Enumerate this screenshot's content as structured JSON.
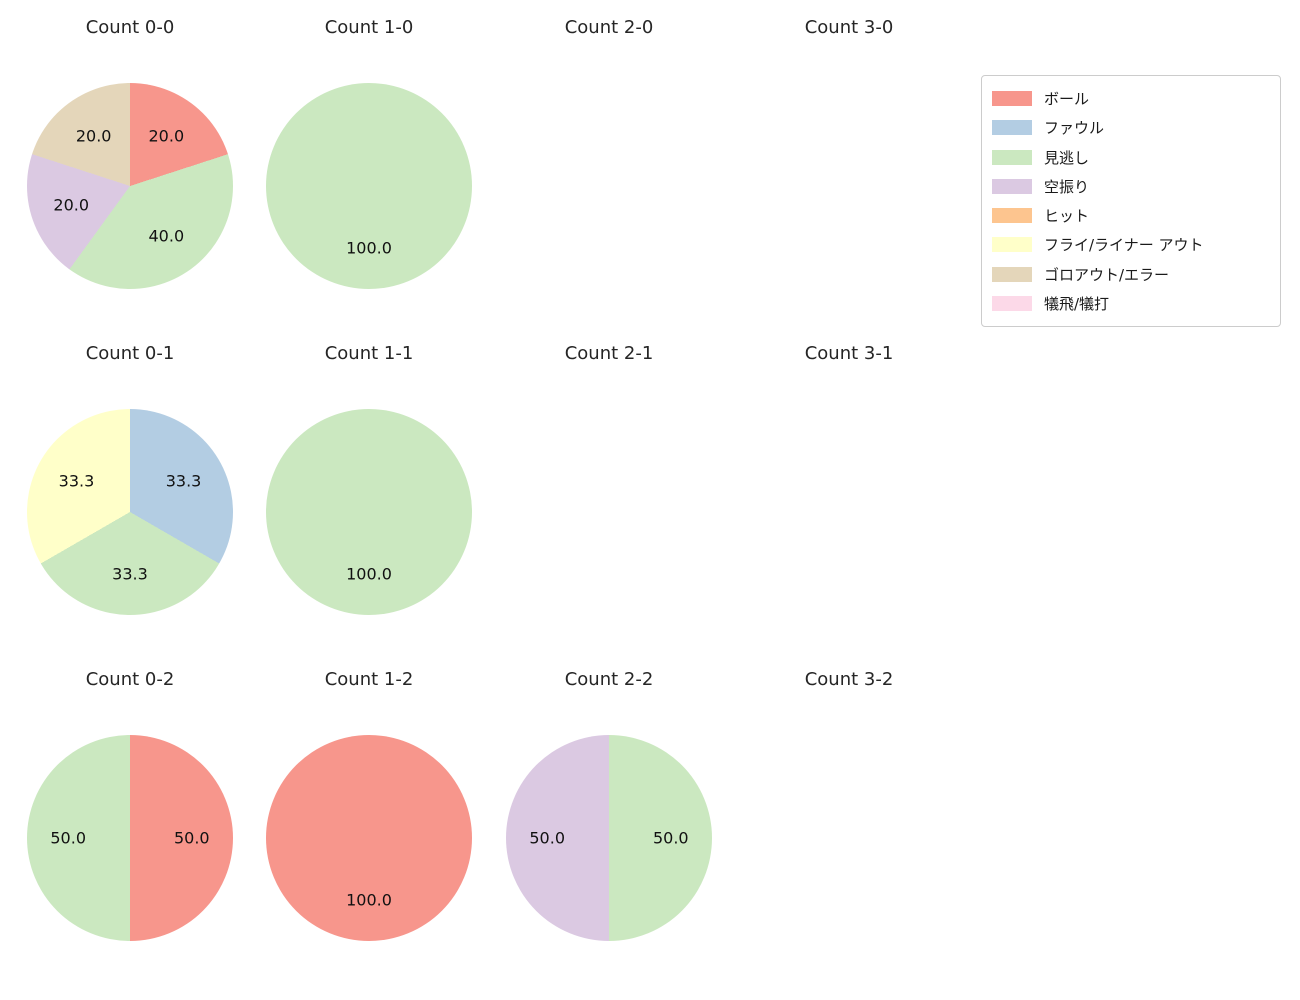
{
  "colors": {
    "background": "#ffffff",
    "ball": "#f7968c",
    "foul": "#b3cde3",
    "called_strike": "#cbe8c0",
    "swinging_strike": "#dbc9e2",
    "hit": "#fdc58f",
    "fly_liner_out": "#ffffc9",
    "ground_out_error": "#e4d6ba",
    "sac": "#fcd9e8"
  },
  "legend": {
    "items": [
      {
        "label": "ボール",
        "color": "#f7968c"
      },
      {
        "label": "ファウル",
        "color": "#b3cde3"
      },
      {
        "label": "見逃し",
        "color": "#cbe8c0"
      },
      {
        "label": "空振り",
        "color": "#dbc9e2"
      },
      {
        "label": "ヒット",
        "color": "#fdc58f"
      },
      {
        "label": "フライ/ライナー アウト",
        "color": "#ffffc9"
      },
      {
        "label": "ゴロアウト/エラー",
        "color": "#e4d6ba"
      },
      {
        "label": "犠飛/犠打",
        "color": "#fcd9e8"
      }
    ]
  },
  "chart_data": [
    {
      "type": "pie",
      "title": "Count 0-0",
      "slices": [
        {
          "label": "ボール",
          "value": 20,
          "pct_text": "20.0",
          "color": "#f7968c"
        },
        {
          "label": "見逃し",
          "value": 40,
          "pct_text": "40.0",
          "color": "#cbe8c0"
        },
        {
          "label": "空振り",
          "value": 20,
          "pct_text": "20.0",
          "color": "#dbc9e2"
        },
        {
          "label": "ゴロアウト/エラー",
          "value": 20,
          "pct_text": "20.0",
          "color": "#e4d6ba"
        }
      ]
    },
    {
      "type": "pie",
      "title": "Count 1-0",
      "slices": [
        {
          "label": "見逃し",
          "value": 100,
          "pct_text": "100.0",
          "color": "#cbe8c0"
        }
      ]
    },
    {
      "type": "pie",
      "title": "Count 2-0",
      "slices": []
    },
    {
      "type": "pie",
      "title": "Count 3-0",
      "slices": []
    },
    {
      "type": "pie",
      "title": "Count 0-1",
      "slices": [
        {
          "label": "ファウル",
          "value": 33.3334,
          "pct_text": "33.3",
          "color": "#b3cde3"
        },
        {
          "label": "見逃し",
          "value": 33.3333,
          "pct_text": "33.3",
          "color": "#cbe8c0"
        },
        {
          "label": "フライ/ライナー アウト",
          "value": 33.3333,
          "pct_text": "33.3",
          "color": "#ffffc9"
        }
      ]
    },
    {
      "type": "pie",
      "title": "Count 1-1",
      "slices": [
        {
          "label": "見逃し",
          "value": 100,
          "pct_text": "100.0",
          "color": "#cbe8c0"
        }
      ]
    },
    {
      "type": "pie",
      "title": "Count 2-1",
      "slices": []
    },
    {
      "type": "pie",
      "title": "Count 3-1",
      "slices": []
    },
    {
      "type": "pie",
      "title": "Count 0-2",
      "slices": [
        {
          "label": "ボール",
          "value": 50,
          "pct_text": "50.0",
          "color": "#f7968c"
        },
        {
          "label": "見逃し",
          "value": 50,
          "pct_text": "50.0",
          "color": "#cbe8c0"
        }
      ]
    },
    {
      "type": "pie",
      "title": "Count 1-2",
      "slices": [
        {
          "label": "ボール",
          "value": 100,
          "pct_text": "100.0",
          "color": "#f7968c"
        }
      ]
    },
    {
      "type": "pie",
      "title": "Count 2-2",
      "slices": [
        {
          "label": "見逃し",
          "value": 50,
          "pct_text": "50.0",
          "color": "#cbe8c0"
        },
        {
          "label": "空振り",
          "value": 50,
          "pct_text": "50.0",
          "color": "#dbc9e2"
        }
      ]
    },
    {
      "type": "pie",
      "title": "Count 3-2",
      "slices": []
    }
  ]
}
